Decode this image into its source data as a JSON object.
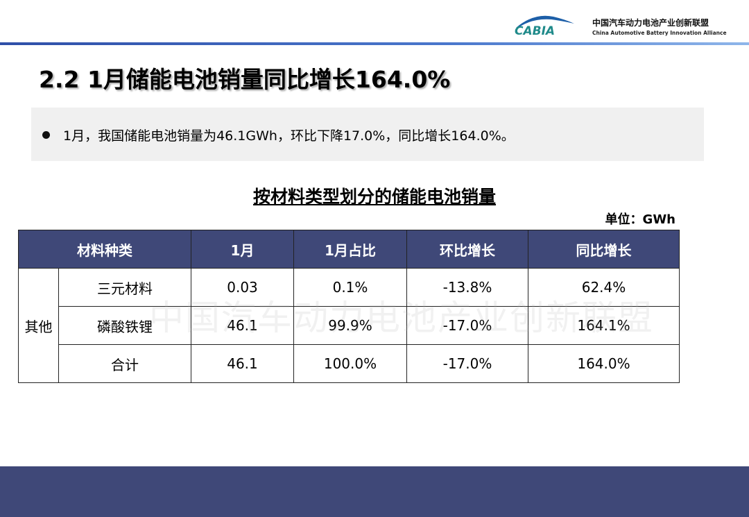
{
  "header": {
    "logo_text": "CABIA",
    "org_name_cn": "中国汽车动力电池产业创新联盟",
    "org_name_en": "China Automotive Battery Innovation Alliance"
  },
  "title": "2.2 1月储能电池销量同比增长164.0%",
  "bullet": "1月，我国储能电池销量为46.1GWh，环比下降17.0%，同比增长164.0%。",
  "table": {
    "title": "按材料类型划分的储能电池销量",
    "unit": "单位：GWh",
    "headers": [
      "材料种类",
      "1月",
      "1月占比",
      "环比增长",
      "同比增长"
    ],
    "group": "其他",
    "rows": [
      {
        "type": "三元材料",
        "jan": "0.03",
        "share": "0.1%",
        "mom": "-13.8%",
        "yoy": "62.4%"
      },
      {
        "type": "磷酸铁锂",
        "jan": "46.1",
        "share": "99.9%",
        "mom": "-17.0%",
        "yoy": "164.1%"
      },
      {
        "type": "合计",
        "jan": "46.1",
        "share": "100.0%",
        "mom": "-17.0%",
        "yoy": "164.0%"
      }
    ],
    "watermark": "中国汽车动力电池产业创新联盟"
  },
  "colors": {
    "header_bg": "#3f4878",
    "accent_line": "#2f4fa8",
    "logo": "#1f8a8a"
  }
}
